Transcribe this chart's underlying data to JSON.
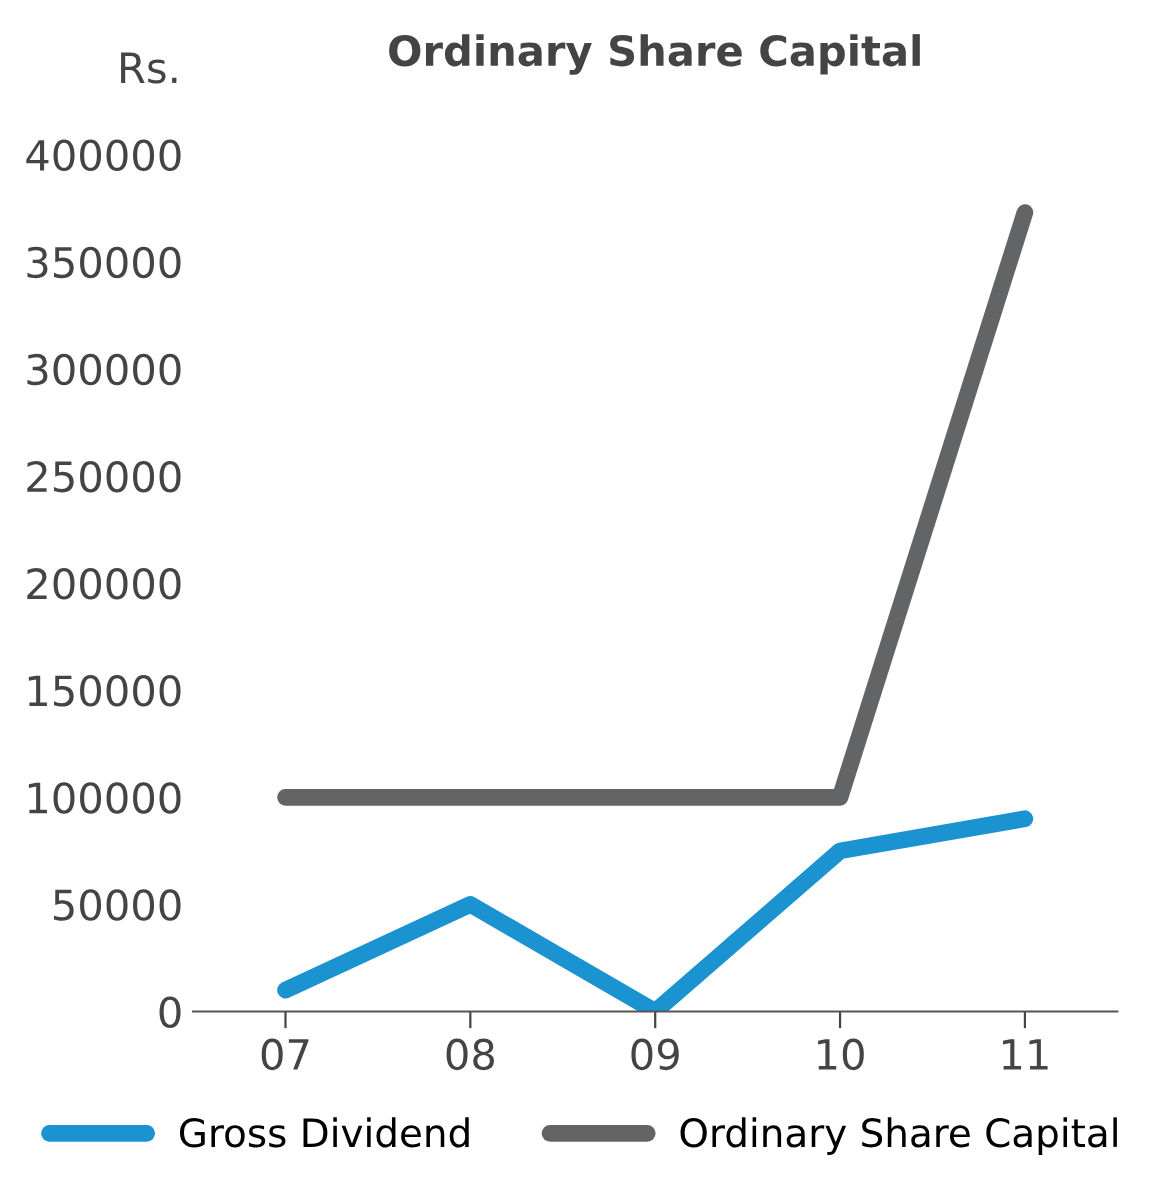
{
  "chart_data": {
    "type": "line",
    "title": "Ordinary Share Capital",
    "ylabel": "Rs.",
    "categories": [
      "07",
      "08",
      "09",
      "10",
      "11"
    ],
    "series": [
      {
        "name": "Gross Dividend",
        "color": "#1b93d1",
        "values": [
          10000,
          50000,
          0,
          75000,
          90000
        ]
      },
      {
        "name": "Ordinary Share Capital",
        "color": "#636466",
        "values": [
          100000,
          100000,
          100000,
          100000,
          373000
        ]
      }
    ],
    "ylim": [
      0,
      400000
    ],
    "yticks": [
      0,
      50000,
      100000,
      150000,
      200000,
      250000,
      300000,
      350000,
      400000
    ],
    "grid": false,
    "legend": "bottom",
    "marker": "none",
    "line_style": "solid"
  }
}
